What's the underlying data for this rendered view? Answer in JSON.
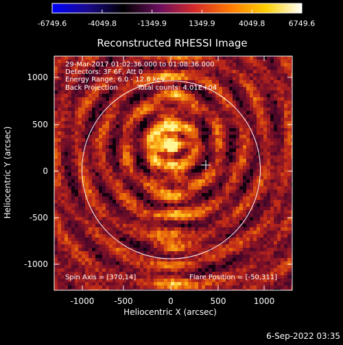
{
  "colorbar": {
    "ticks": [
      "-6749.6",
      "-4049.8",
      "-1349.9",
      "1349.9",
      "4049.8",
      "6749.6"
    ],
    "stops": [
      "#0000ff",
      "#1a0a8c",
      "#000000",
      "#6a0f5e",
      "#d52a2a",
      "#ff7a00",
      "#ffd000",
      "#ffffff"
    ]
  },
  "title": "Reconstructed RHESSI Image",
  "info": {
    "time_range": "29-Mar-2017 01:02:36.000 to 01:08:36.000",
    "detectors": "Detectors: 3F 6F, Att 0",
    "energy": "Energy Range: 6.0 - 12.0 keV",
    "method": "Back Projection",
    "counts": "Total counts: 4.01E+04",
    "spin_axis": "Spin Axis = [370,14]",
    "flare_position": "Flare Position = [-50,311]"
  },
  "axes": {
    "xlabel": "Heliocentric X (arcsec)",
    "ylabel": "Heliocentric Y (arcsec)",
    "xticks": [
      "-1000",
      "-500",
      "0",
      "500",
      "1000"
    ],
    "yticks": [
      "1000",
      "500",
      "0",
      "-500",
      "-1000"
    ]
  },
  "timestamp": "6-Sep-2022 03:35",
  "image_params": {
    "x_range": [
      -1280,
      1280
    ],
    "y_range": [
      -1280,
      1280
    ],
    "solar_radius_arcsec": 960,
    "spin_axis_marker": [
      370,
      14
    ]
  }
}
